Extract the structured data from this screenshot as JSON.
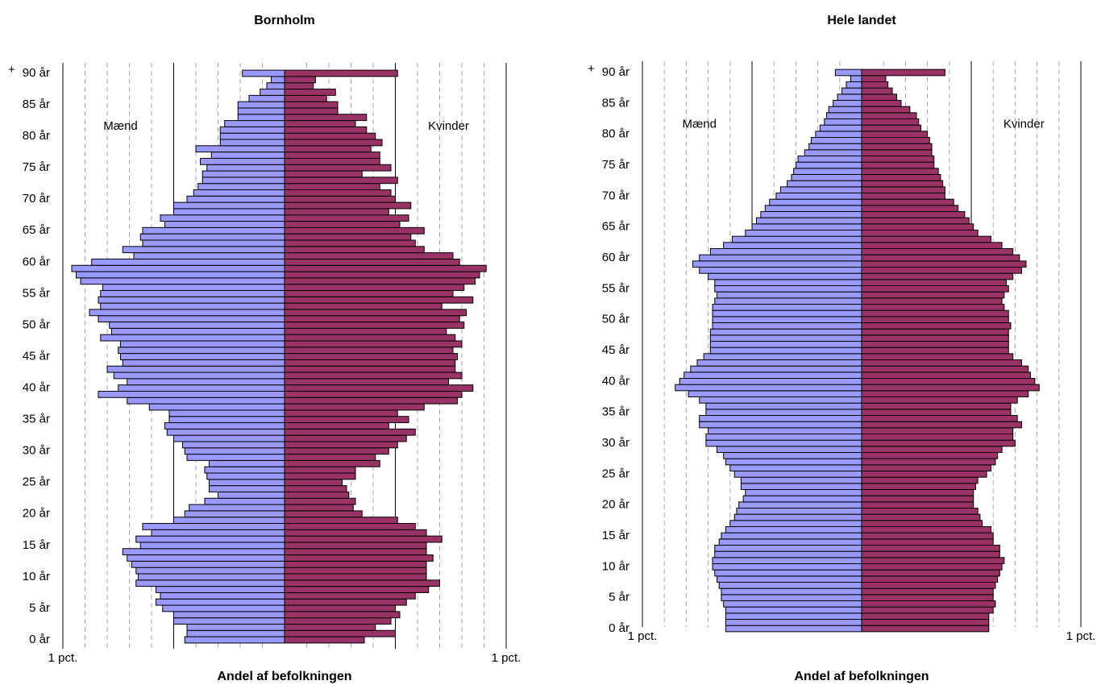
{
  "chart_data": [
    {
      "type": "pyramid",
      "title": "Bornholm",
      "xlabel": "Andel af befolkningen",
      "annotations": [
        "+"
      ],
      "categories": [
        "0 år",
        null,
        null,
        null,
        null,
        "5 år",
        null,
        null,
        null,
        null,
        "10 år",
        null,
        null,
        null,
        null,
        "15 år",
        null,
        null,
        null,
        null,
        "20 år",
        null,
        null,
        null,
        null,
        "25 år",
        null,
        null,
        null,
        null,
        "30 år",
        null,
        null,
        null,
        null,
        "35 år",
        null,
        null,
        null,
        null,
        "40 år",
        null,
        null,
        null,
        null,
        "45 år",
        null,
        null,
        null,
        null,
        "50 år",
        null,
        null,
        null,
        null,
        "55 år",
        null,
        null,
        null,
        null,
        "60 år",
        null,
        null,
        null,
        null,
        "65 år",
        null,
        null,
        null,
        null,
        "70 år",
        null,
        null,
        null,
        null,
        "75 år",
        null,
        null,
        null,
        null,
        "80 år",
        null,
        null,
        null,
        null,
        "85 år",
        null,
        null,
        null,
        null,
        "90 år"
      ],
      "series": [
        {
          "name": "Mænd",
          "color": "#9999ff",
          "values": [
            -0.45,
            -0.44,
            -0.44,
            -0.5,
            -0.5,
            -0.55,
            -0.58,
            -0.56,
            -0.58,
            -0.67,
            -0.66,
            -0.67,
            -0.69,
            -0.71,
            -0.73,
            -0.65,
            -0.67,
            -0.6,
            -0.64,
            -0.5,
            -0.45,
            -0.43,
            -0.36,
            -0.3,
            -0.34,
            -0.34,
            -0.35,
            -0.36,
            -0.34,
            -0.44,
            -0.45,
            -0.46,
            -0.5,
            -0.53,
            -0.54,
            -0.52,
            -0.52,
            -0.61,
            -0.71,
            -0.84,
            -0.75,
            -0.71,
            -0.77,
            -0.8,
            -0.73,
            -0.74,
            -0.75,
            -0.74,
            -0.83,
            -0.78,
            -0.79,
            -0.84,
            -0.88,
            -0.83,
            -0.84,
            -0.83,
            -0.82,
            -0.92,
            -0.94,
            -0.96,
            -0.87,
            -0.68,
            -0.73,
            -0.64,
            -0.65,
            -0.64,
            -0.54,
            -0.56,
            -0.5,
            -0.5,
            -0.44,
            -0.41,
            -0.39,
            -0.37,
            -0.37,
            -0.35,
            -0.38,
            -0.33,
            -0.4,
            -0.29,
            -0.29,
            -0.29,
            -0.27,
            -0.21,
            -0.21,
            -0.21,
            -0.16,
            -0.11,
            -0.08,
            -0.06,
            -0.19
          ]
        },
        {
          "name": "Kvinder",
          "color": "#993366",
          "values": [
            0.36,
            0.5,
            0.41,
            0.48,
            0.52,
            0.5,
            0.55,
            0.59,
            0.65,
            0.7,
            0.64,
            0.64,
            0.64,
            0.67,
            0.64,
            0.64,
            0.71,
            0.64,
            0.59,
            0.51,
            0.35,
            0.31,
            0.32,
            0.29,
            0.28,
            0.26,
            0.32,
            0.32,
            0.43,
            0.41,
            0.47,
            0.51,
            0.55,
            0.59,
            0.47,
            0.56,
            0.51,
            0.63,
            0.78,
            0.8,
            0.85,
            0.74,
            0.8,
            0.77,
            0.77,
            0.78,
            0.76,
            0.8,
            0.77,
            0.73,
            0.81,
            0.79,
            0.82,
            0.71,
            0.85,
            0.76,
            0.81,
            0.86,
            0.88,
            0.91,
            0.79,
            0.76,
            0.63,
            0.59,
            0.57,
            0.63,
            0.52,
            0.56,
            0.47,
            0.57,
            0.5,
            0.48,
            0.43,
            0.51,
            0.35,
            0.48,
            0.43,
            0.43,
            0.39,
            0.44,
            0.41,
            0.37,
            0.32,
            0.37,
            0.24,
            0.24,
            0.19,
            0.23,
            0.13,
            0.14,
            0.51
          ]
        }
      ],
      "xlim": [
        -1,
        1
      ],
      "xticks": [
        {
          "value": -1,
          "label": "1 pct."
        },
        {
          "value": 1,
          "label": "1 pct."
        }
      ],
      "major_grid": [
        -0.5,
        0.5
      ],
      "minor_grid": [
        -0.9,
        -0.8,
        -0.7,
        -0.6,
        -0.4,
        -0.3,
        -0.2,
        -0.1,
        0.1,
        0.2,
        0.3,
        0.4,
        0.6,
        0.7,
        0.8,
        0.9
      ]
    },
    {
      "type": "pyramid",
      "title": "Hele landet",
      "xlabel": "Andel af befolkningen",
      "annotations": [
        "+"
      ],
      "categories": [
        "0 år",
        null,
        null,
        null,
        null,
        "5 år",
        null,
        null,
        null,
        null,
        "10 år",
        null,
        null,
        null,
        null,
        "15 år",
        null,
        null,
        null,
        null,
        "20 år",
        null,
        null,
        null,
        null,
        "25 år",
        null,
        null,
        null,
        null,
        "30 år",
        null,
        null,
        null,
        null,
        "35 år",
        null,
        null,
        null,
        null,
        "40 år",
        null,
        null,
        null,
        null,
        "45 år",
        null,
        null,
        null,
        null,
        "50 år",
        null,
        null,
        null,
        null,
        "55 år",
        null,
        null,
        null,
        null,
        "60 år",
        null,
        null,
        null,
        null,
        "65 år",
        null,
        null,
        null,
        null,
        "70 år",
        null,
        null,
        null,
        null,
        "75 år",
        null,
        null,
        null,
        null,
        "80 år",
        null,
        null,
        null,
        null,
        "85 år",
        null,
        null,
        null,
        null,
        "90 år"
      ],
      "series": [
        {
          "name": "Mænd",
          "color": "#9999ff",
          "values": [
            -0.62,
            -0.62,
            -0.62,
            -0.62,
            -0.63,
            -0.64,
            -0.64,
            -0.65,
            -0.66,
            -0.67,
            -0.68,
            -0.68,
            -0.67,
            -0.67,
            -0.65,
            -0.64,
            -0.62,
            -0.6,
            -0.58,
            -0.57,
            -0.56,
            -0.54,
            -0.53,
            -0.55,
            -0.55,
            -0.58,
            -0.6,
            -0.62,
            -0.63,
            -0.66,
            -0.71,
            -0.71,
            -0.7,
            -0.74,
            -0.74,
            -0.71,
            -0.71,
            -0.74,
            -0.79,
            -0.85,
            -0.83,
            -0.81,
            -0.78,
            -0.75,
            -0.72,
            -0.69,
            -0.69,
            -0.69,
            -0.69,
            -0.68,
            -0.68,
            -0.68,
            -0.68,
            -0.67,
            -0.66,
            -0.67,
            -0.67,
            -0.7,
            -0.74,
            -0.77,
            -0.74,
            -0.69,
            -0.63,
            -0.59,
            -0.53,
            -0.5,
            -0.48,
            -0.46,
            -0.44,
            -0.42,
            -0.39,
            -0.37,
            -0.34,
            -0.32,
            -0.31,
            -0.3,
            -0.29,
            -0.26,
            -0.24,
            -0.23,
            -0.21,
            -0.19,
            -0.17,
            -0.16,
            -0.15,
            -0.13,
            -0.11,
            -0.09,
            -0.07,
            -0.05,
            -0.12
          ]
        },
        {
          "name": "Kvinder",
          "color": "#993366",
          "values": [
            0.58,
            0.58,
            0.58,
            0.6,
            0.61,
            0.6,
            0.6,
            0.61,
            0.62,
            0.63,
            0.64,
            0.65,
            0.63,
            0.63,
            0.6,
            0.6,
            0.59,
            0.55,
            0.54,
            0.53,
            0.51,
            0.51,
            0.51,
            0.52,
            0.53,
            0.57,
            0.59,
            0.61,
            0.62,
            0.64,
            0.7,
            0.69,
            0.69,
            0.73,
            0.71,
            0.68,
            0.68,
            0.71,
            0.76,
            0.81,
            0.79,
            0.77,
            0.76,
            0.73,
            0.69,
            0.67,
            0.67,
            0.67,
            0.67,
            0.68,
            0.67,
            0.67,
            0.65,
            0.64,
            0.65,
            0.67,
            0.66,
            0.69,
            0.73,
            0.75,
            0.72,
            0.69,
            0.64,
            0.59,
            0.53,
            0.51,
            0.49,
            0.47,
            0.44,
            0.42,
            0.38,
            0.38,
            0.37,
            0.36,
            0.35,
            0.33,
            0.33,
            0.32,
            0.32,
            0.31,
            0.3,
            0.27,
            0.26,
            0.25,
            0.22,
            0.18,
            0.16,
            0.14,
            0.12,
            0.11,
            0.38
          ]
        }
      ],
      "xlim": [
        -1,
        1
      ],
      "xticks": [
        {
          "value": -1,
          "label": "1 pct."
        },
        {
          "value": 1,
          "label": "1 pct."
        }
      ],
      "major_grid": [
        -0.5,
        0.5
      ],
      "minor_grid": [
        -0.9,
        -0.8,
        -0.7,
        -0.6,
        -0.4,
        -0.3,
        -0.2,
        -0.1,
        0.1,
        0.2,
        0.3,
        0.4,
        0.6,
        0.7,
        0.8,
        0.9
      ]
    }
  ]
}
